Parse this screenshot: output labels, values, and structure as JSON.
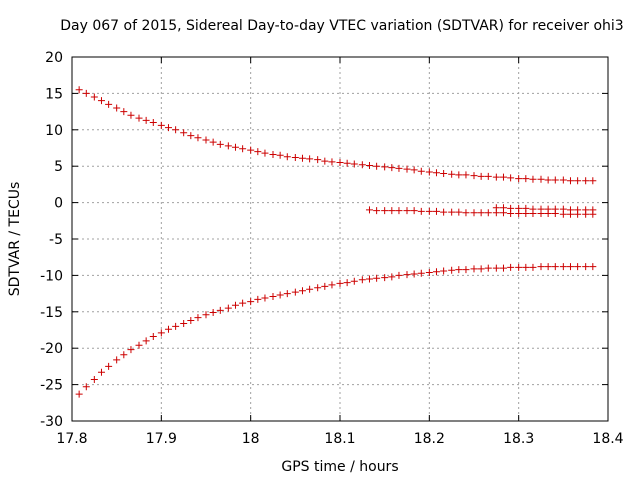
{
  "chart_data": {
    "type": "scatter",
    "title": "Day 067 of 2015, Sidereal Day-to-day VTEC variation (SDTVAR) for receiver ohi3",
    "xlabel": "GPS time / hours",
    "ylabel": "SDTVAR / TECUs",
    "xlim": [
      17.8,
      18.4
    ],
    "ylim": [
      -30,
      20
    ],
    "xticks": [
      17.8,
      17.9,
      18.0,
      18.1,
      18.2,
      18.3,
      18.4
    ],
    "xtick_labels": [
      "17.8",
      "17.9",
      "18",
      "18.1",
      "18.2",
      "18.3",
      "18.4"
    ],
    "yticks": [
      -30,
      -25,
      -20,
      -15,
      -10,
      -5,
      0,
      5,
      10,
      15,
      20
    ],
    "ytick_labels": [
      "-30",
      "-25",
      "-20",
      "-15",
      "-10",
      "-5",
      "0",
      "5",
      "10",
      "15",
      "20"
    ],
    "grid": true,
    "marker": "+",
    "marker_color": "#cc0000",
    "series": [
      {
        "name": "upper-track",
        "x": [
          17.808,
          17.816,
          17.825,
          17.833,
          17.841,
          17.85,
          17.858,
          17.866,
          17.875,
          17.883,
          17.891,
          17.9,
          17.908,
          17.916,
          17.925,
          17.933,
          17.941,
          17.95,
          17.958,
          17.966,
          17.975,
          17.983,
          17.991,
          18.0,
          18.008,
          18.016,
          18.025,
          18.033,
          18.041,
          18.05,
          18.058,
          18.066,
          18.075,
          18.083,
          18.091,
          18.1,
          18.108,
          18.116,
          18.125,
          18.133,
          18.141,
          18.15,
          18.158,
          18.166,
          18.175,
          18.183,
          18.191,
          18.2,
          18.208,
          18.216,
          18.225,
          18.233,
          18.241,
          18.25,
          18.258,
          18.266,
          18.275,
          18.283,
          18.291,
          18.3,
          18.308,
          18.316,
          18.325,
          18.333,
          18.341,
          18.35,
          18.358,
          18.366,
          18.375,
          18.383
        ],
        "y": [
          15.5,
          15.0,
          14.5,
          14.0,
          13.5,
          13.0,
          12.5,
          12.0,
          11.6,
          11.3,
          11.0,
          10.6,
          10.3,
          10.0,
          9.6,
          9.2,
          8.9,
          8.6,
          8.3,
          8.0,
          7.8,
          7.6,
          7.4,
          7.2,
          7.0,
          6.8,
          6.6,
          6.5,
          6.3,
          6.2,
          6.1,
          6.0,
          5.9,
          5.7,
          5.6,
          5.5,
          5.4,
          5.3,
          5.2,
          5.1,
          5.0,
          4.9,
          4.8,
          4.7,
          4.6,
          4.5,
          4.3,
          4.2,
          4.1,
          4.0,
          3.9,
          3.8,
          3.8,
          3.7,
          3.6,
          3.6,
          3.5,
          3.5,
          3.4,
          3.3,
          3.3,
          3.2,
          3.2,
          3.1,
          3.1,
          3.1,
          3.0,
          3.0,
          3.0,
          3.0
        ]
      },
      {
        "name": "middle-track",
        "x": [
          18.133,
          18.141,
          18.15,
          18.158,
          18.166,
          18.175,
          18.183,
          18.191,
          18.2,
          18.208,
          18.216,
          18.225,
          18.233,
          18.241,
          18.25,
          18.258,
          18.266,
          18.275,
          18.283,
          18.291,
          18.3,
          18.308,
          18.316,
          18.325,
          18.333,
          18.341,
          18.35,
          18.358,
          18.366,
          18.375,
          18.383
        ],
        "y": [
          -1.0,
          -1.1,
          -1.1,
          -1.1,
          -1.1,
          -1.1,
          -1.1,
          -1.2,
          -1.2,
          -1.2,
          -1.3,
          -1.3,
          -1.3,
          -1.4,
          -1.4,
          -1.4,
          -1.4,
          -1.4,
          -1.4,
          -1.5,
          -1.5,
          -1.5,
          -1.5,
          -1.5,
          -1.5,
          -1.5,
          -1.6,
          -1.6,
          -1.6,
          -1.6,
          -1.6
        ]
      },
      {
        "name": "middle-track-secondary",
        "x": [
          18.275,
          18.283,
          18.291,
          18.3,
          18.308,
          18.316,
          18.325,
          18.333,
          18.341,
          18.35,
          18.358,
          18.366,
          18.375,
          18.383
        ],
        "y": [
          -0.7,
          -0.7,
          -0.8,
          -0.8,
          -0.8,
          -0.9,
          -0.9,
          -0.9,
          -0.9,
          -0.9,
          -1.0,
          -1.0,
          -1.0,
          -1.0
        ]
      },
      {
        "name": "lower-track",
        "x": [
          17.808,
          17.816,
          17.825,
          17.833,
          17.841,
          17.85,
          17.858,
          17.866,
          17.875,
          17.883,
          17.891,
          17.9,
          17.908,
          17.916,
          17.925,
          17.933,
          17.941,
          17.95,
          17.958,
          17.966,
          17.975,
          17.983,
          17.991,
          18.0,
          18.008,
          18.016,
          18.025,
          18.033,
          18.041,
          18.05,
          18.058,
          18.066,
          18.075,
          18.083,
          18.091,
          18.1,
          18.108,
          18.116,
          18.125,
          18.133,
          18.141,
          18.15,
          18.158,
          18.166,
          18.175,
          18.183,
          18.191,
          18.2,
          18.208,
          18.216,
          18.225,
          18.233,
          18.241,
          18.25,
          18.258,
          18.266,
          18.275,
          18.283,
          18.291,
          18.3,
          18.308,
          18.316,
          18.325,
          18.333,
          18.341,
          18.35,
          18.358,
          18.366,
          18.375,
          18.383
        ],
        "y": [
          -26.3,
          -25.3,
          -24.3,
          -23.3,
          -22.5,
          -21.6,
          -20.9,
          -20.2,
          -19.6,
          -19.0,
          -18.4,
          -17.9,
          -17.4,
          -17.0,
          -16.6,
          -16.2,
          -15.8,
          -15.4,
          -15.1,
          -14.8,
          -14.5,
          -14.1,
          -13.8,
          -13.6,
          -13.3,
          -13.1,
          -12.9,
          -12.7,
          -12.5,
          -12.3,
          -12.1,
          -11.9,
          -11.7,
          -11.5,
          -11.3,
          -11.1,
          -11.0,
          -10.8,
          -10.6,
          -10.5,
          -10.4,
          -10.3,
          -10.2,
          -10.0,
          -9.9,
          -9.8,
          -9.7,
          -9.6,
          -9.5,
          -9.4,
          -9.3,
          -9.2,
          -9.2,
          -9.1,
          -9.1,
          -9.0,
          -9.0,
          -9.0,
          -8.9,
          -8.9,
          -8.9,
          -8.9,
          -8.8,
          -8.8,
          -8.8,
          -8.8,
          -8.8,
          -8.8,
          -8.8,
          -8.8
        ]
      }
    ]
  }
}
